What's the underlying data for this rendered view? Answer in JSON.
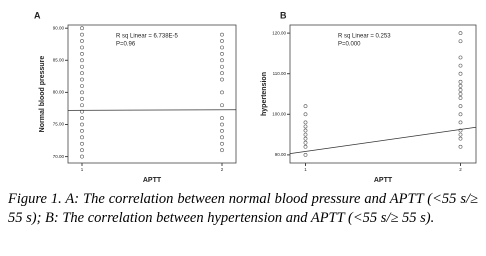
{
  "chart_data": [
    {
      "type": "scatter",
      "panel": "A",
      "x_label": "APTT",
      "y_label": "Normal blood pressure",
      "annotations": [
        "R sq Linear = 6.738E-5",
        "P=0.96"
      ],
      "x": [
        1,
        1,
        1,
        1,
        1,
        1,
        1,
        1,
        1,
        1,
        1,
        1,
        1,
        1,
        1,
        1,
        1,
        1,
        1,
        1,
        1,
        2,
        2,
        2,
        2,
        2,
        2,
        2,
        2,
        2,
        2,
        2,
        2,
        2,
        2,
        2,
        2
      ],
      "values": [
        70,
        71,
        72,
        73,
        74,
        75,
        76,
        77,
        78,
        79,
        80,
        81,
        82,
        83,
        84,
        85,
        86,
        87,
        88,
        89,
        90,
        71,
        72,
        73,
        74,
        75,
        76,
        78,
        80,
        82,
        83,
        84,
        85,
        86,
        87,
        88,
        89
      ],
      "color": "#555555",
      "trend": {
        "x": [
          0.9,
          2.1
        ],
        "values": [
          77.2,
          77.3
        ],
        "color": "#333333"
      },
      "xlim": [
        0.9,
        2.1
      ],
      "xticks": [
        1,
        2
      ],
      "ylim": [
        69,
        90.5
      ],
      "yticks": [
        {
          "value": 70,
          "label": "70.00"
        },
        {
          "value": 75,
          "label": "75.00"
        },
        {
          "value": 80,
          "label": "80.00"
        },
        {
          "value": 85,
          "label": "85.00"
        },
        {
          "value": 90,
          "label": "90.00"
        }
      ]
    },
    {
      "type": "scatter",
      "panel": "B",
      "x_label": "APTT",
      "y_label": "hypertension",
      "annotations": [
        "R sq Linear = 0.253",
        "P=0.000"
      ],
      "x": [
        1,
        1,
        1,
        1,
        1,
        1,
        1,
        1,
        1,
        1,
        2,
        2,
        2,
        2,
        2,
        2,
        2,
        2,
        2,
        2,
        2,
        2,
        2,
        2,
        2,
        2,
        2
      ],
      "values": [
        90,
        92,
        93,
        94,
        95,
        96,
        97,
        98,
        100,
        102,
        92,
        94,
        95,
        96,
        98,
        100,
        102,
        104,
        105,
        106,
        107,
        108,
        110,
        112,
        114,
        118,
        120
      ],
      "color": "#555555",
      "trend": {
        "x": [
          0.9,
          2.1
        ],
        "values": [
          90.3,
          96.8
        ],
        "color": "#333333"
      },
      "xlim": [
        0.9,
        2.1
      ],
      "xticks": [
        1,
        2
      ],
      "ylim": [
        88,
        122
      ],
      "yticks": [
        {
          "value": 90,
          "label": "90.00"
        },
        {
          "value": 100,
          "label": "100.00"
        },
        {
          "value": 110,
          "label": "110.00"
        },
        {
          "value": 120,
          "label": "120.00"
        }
      ]
    }
  ],
  "caption": {
    "label": "Figure 1.",
    "text": "A: The correlation between normal blood pressure and APTT (<55 s/≥ 55 s); B: The correlation between hypertension and APTT (<55 s/≥ 55 s)."
  }
}
